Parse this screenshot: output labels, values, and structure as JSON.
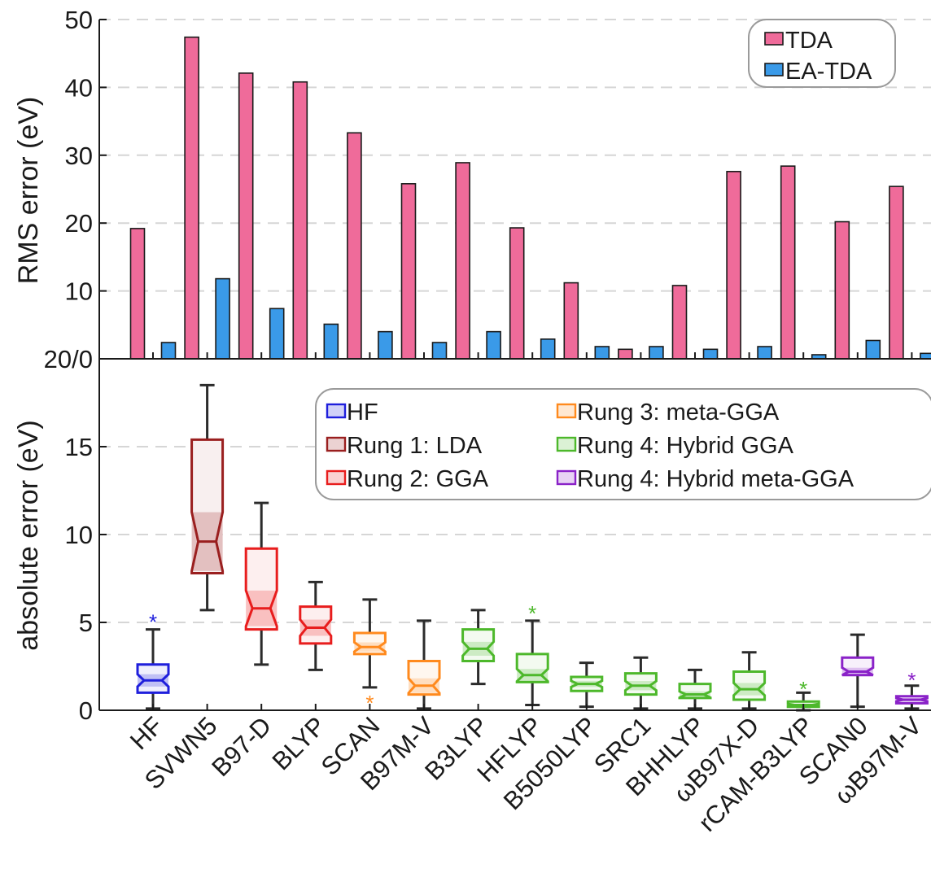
{
  "chart_data": [
    {
      "type": "bar",
      "title": "",
      "xlabel": "",
      "ylabel": "RMS error (eV)",
      "ylim": [
        0,
        50
      ],
      "yticks": [
        "0",
        "10",
        "20",
        "30",
        "40",
        "50"
      ],
      "grid": true,
      "legend_placement": "top-right",
      "categories": [
        "HF",
        "SVWN5",
        "B97-D",
        "BLYP",
        "SCAN",
        "B97M-V",
        "B3LYP",
        "HFLYP",
        "B5050LYP",
        "SRC1",
        "BHHLYP",
        "ωB97X-D",
        "rCAM-B3LYP",
        "SCAN0",
        "ωB97M-V"
      ],
      "series": [
        {
          "name": "TDA",
          "color": "#ef6b9a",
          "values": [
            19.2,
            47.4,
            42.1,
            40.8,
            33.3,
            25.8,
            28.9,
            19.3,
            11.2,
            1.4,
            10.8,
            27.6,
            28.4,
            20.2,
            25.4
          ]
        },
        {
          "name": "EA-TDA",
          "color": "#3a9ae8",
          "values": [
            2.4,
            11.8,
            7.4,
            5.1,
            4.0,
            2.4,
            4.0,
            2.9,
            1.8,
            1.8,
            1.4,
            1.8,
            0.6,
            2.7,
            0.8
          ]
        }
      ]
    },
    {
      "type": "box",
      "title": "",
      "xlabel": "",
      "ylabel": "absolute error (eV)",
      "ylim": [
        0,
        20
      ],
      "yticks": [
        "0",
        "5",
        "10",
        "15"
      ],
      "top_tick_label": "20/0",
      "grid": true,
      "legend_placement": "top-right",
      "legend": [
        {
          "label": "HF",
          "color": "#1f1fdc"
        },
        {
          "label": "Rung 1: LDA",
          "color": "#9a1f1f"
        },
        {
          "label": "Rung 2: GGA",
          "color": "#e81d1d"
        },
        {
          "label": "Rung 3: meta-GGA",
          "color": "#ff8a1e"
        },
        {
          "label": "Rung 4: Hybrid GGA",
          "color": "#4db82b"
        },
        {
          "label": "Rung 4: Hybrid meta-GGA",
          "color": "#8a22c8"
        }
      ],
      "categories": [
        "HF",
        "SVWN5",
        "B97-D",
        "BLYP",
        "SCAN",
        "B97M-V",
        "B3LYP",
        "HFLYP",
        "B5050LYP",
        "SRC1",
        "BHHLYP",
        "ωB97X-D",
        "rCAM-B3LYP",
        "SCAN0",
        "ωB97M-V"
      ],
      "boxes": [
        {
          "label": "HF",
          "group": 0,
          "whislo": 0.1,
          "q1": 1.0,
          "med": 1.7,
          "q3": 2.6,
          "whishi": 4.6,
          "fliers": [
            5.2
          ]
        },
        {
          "label": "SVWN5",
          "group": 1,
          "whislo": 5.7,
          "q1": 7.8,
          "med": 9.6,
          "q3": 15.4,
          "whishi": 18.5,
          "fliers": []
        },
        {
          "label": "B97-D",
          "group": 2,
          "whislo": 2.6,
          "q1": 4.6,
          "med": 5.8,
          "q3": 9.2,
          "whishi": 11.8,
          "fliers": []
        },
        {
          "label": "BLYP",
          "group": 2,
          "whislo": 2.3,
          "q1": 3.8,
          "med": 4.7,
          "q3": 5.9,
          "whishi": 7.3,
          "fliers": []
        },
        {
          "label": "SCAN",
          "group": 3,
          "whislo": 1.3,
          "q1": 3.2,
          "med": 3.6,
          "q3": 4.4,
          "whishi": 6.3,
          "fliers": [
            0.6
          ]
        },
        {
          "label": "B97M-V",
          "group": 3,
          "whislo": 0.1,
          "q1": 0.9,
          "med": 1.4,
          "q3": 2.8,
          "whishi": 5.1,
          "fliers": []
        },
        {
          "label": "B3LYP",
          "group": 4,
          "whislo": 1.5,
          "q1": 2.8,
          "med": 3.5,
          "q3": 4.6,
          "whishi": 5.7,
          "fliers": []
        },
        {
          "label": "HFLYP",
          "group": 4,
          "whislo": 0.3,
          "q1": 1.6,
          "med": 2.0,
          "q3": 3.2,
          "whishi": 5.1,
          "fliers": [
            5.7
          ]
        },
        {
          "label": "B5050LYP",
          "group": 4,
          "whislo": 0.2,
          "q1": 1.1,
          "med": 1.5,
          "q3": 1.9,
          "whishi": 2.7,
          "fliers": []
        },
        {
          "label": "SRC1",
          "group": 4,
          "whislo": 0.1,
          "q1": 0.9,
          "med": 1.4,
          "q3": 2.1,
          "whishi": 3.0,
          "fliers": []
        },
        {
          "label": "BHHLYP",
          "group": 4,
          "whislo": 0.1,
          "q1": 0.7,
          "med": 0.9,
          "q3": 1.5,
          "whishi": 2.3,
          "fliers": []
        },
        {
          "label": "ωB97X-D",
          "group": 4,
          "whislo": 0.1,
          "q1": 0.6,
          "med": 1.2,
          "q3": 2.2,
          "whishi": 3.3,
          "fliers": []
        },
        {
          "label": "rCAM-B3LYP",
          "group": 4,
          "whislo": 0.0,
          "q1": 0.2,
          "med": 0.3,
          "q3": 0.5,
          "whishi": 1.0,
          "fliers": [
            1.4
          ]
        },
        {
          "label": "SCAN0",
          "group": 5,
          "whislo": 0.2,
          "q1": 2.0,
          "med": 2.2,
          "q3": 3.0,
          "whishi": 4.3,
          "fliers": []
        },
        {
          "label": "ωB97M-V",
          "group": 5,
          "whislo": 0.1,
          "q1": 0.4,
          "med": 0.6,
          "q3": 0.8,
          "whishi": 1.4,
          "fliers": [
            1.9
          ]
        }
      ]
    }
  ]
}
